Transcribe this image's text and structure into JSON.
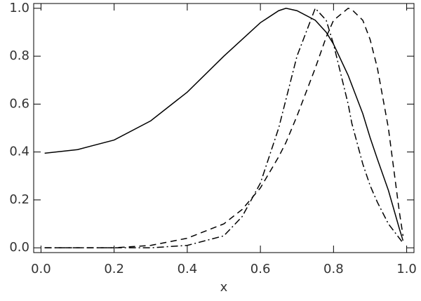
{
  "chart_data": {
    "type": "line",
    "x_label": "x",
    "x": [
      0.01,
      0.1,
      0.2,
      0.3,
      0.4,
      0.5,
      0.55,
      0.6,
      0.65,
      0.67,
      0.7,
      0.75,
      0.78,
      0.8,
      0.84,
      0.85,
      0.88,
      0.9,
      0.92,
      0.95,
      0.98,
      0.99
    ],
    "series": [
      {
        "color": "#000000",
        "dash": "solid",
        "values": [
          0.395,
          0.41,
          0.45,
          0.53,
          0.65,
          0.8,
          0.87,
          0.94,
          0.99,
          1.0,
          0.99,
          0.95,
          0.9,
          0.85,
          0.72,
          0.68,
          0.56,
          0.46,
          0.37,
          0.24,
          0.08,
          0.03
        ]
      },
      {
        "color": "#000000",
        "dash": "dashed",
        "values": [
          0,
          0,
          0,
          0.01,
          0.04,
          0.1,
          0.16,
          0.25,
          0.38,
          0.44,
          0.55,
          0.75,
          0.88,
          0.95,
          1.0,
          0.995,
          0.95,
          0.87,
          0.75,
          0.5,
          0.15,
          0.05
        ]
      },
      {
        "color": "#000000",
        "dash": "dashdot",
        "values": [
          0,
          0,
          0,
          0,
          0.01,
          0.05,
          0.13,
          0.27,
          0.5,
          0.62,
          0.8,
          1.0,
          0.95,
          0.85,
          0.6,
          0.52,
          0.35,
          0.26,
          0.19,
          0.1,
          0.04,
          0.02
        ]
      }
    ],
    "xlim": [
      -0.02,
      1.02
    ],
    "ylim": [
      -0.02,
      1.02
    ],
    "xticks": [
      {
        "value": 0,
        "label": "0.0"
      },
      0.2,
      0.4,
      0.6,
      0.8,
      {
        "value": 1,
        "label": "1.0"
      }
    ],
    "yticks": [
      {
        "value": 0,
        "label": "0.0"
      },
      0.2,
      0.4,
      0.6,
      0.8,
      {
        "value": 1,
        "label": "1.0"
      }
    ],
    "grid": false
  }
}
